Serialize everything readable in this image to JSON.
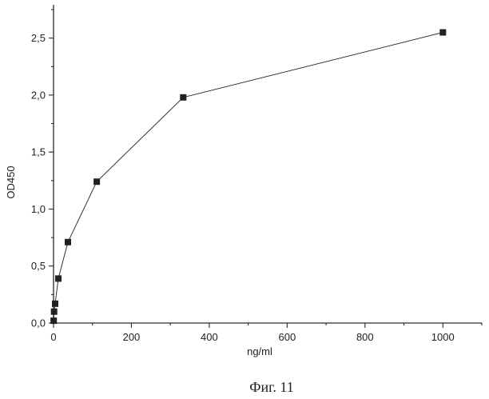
{
  "chart_data": {
    "type": "scatter",
    "xlabel": "ng/ml",
    "ylabel": "OD450",
    "caption": "Фиг. 11",
    "xlim": [
      0,
      1100
    ],
    "ylim": [
      0,
      2.75
    ],
    "x_ticks": [
      0,
      200,
      400,
      600,
      800,
      1000
    ],
    "x_tick_labels": [
      "0",
      "200",
      "400",
      "600",
      "800",
      "1000"
    ],
    "y_ticks": [
      0,
      0.5,
      1.0,
      1.5,
      2.0,
      2.5
    ],
    "y_tick_labels": [
      "0,0",
      "0,5",
      "1,0",
      "1,5",
      "2,0",
      "2,5"
    ],
    "grid": false,
    "series": [
      {
        "marker": "square",
        "connected": true,
        "x": [
          0.5,
          1.4,
          4.1,
          12.3,
          37,
          111,
          333,
          1000
        ],
        "y": [
          0.02,
          0.1,
          0.17,
          0.39,
          0.71,
          1.24,
          1.98,
          2.55
        ]
      }
    ]
  }
}
